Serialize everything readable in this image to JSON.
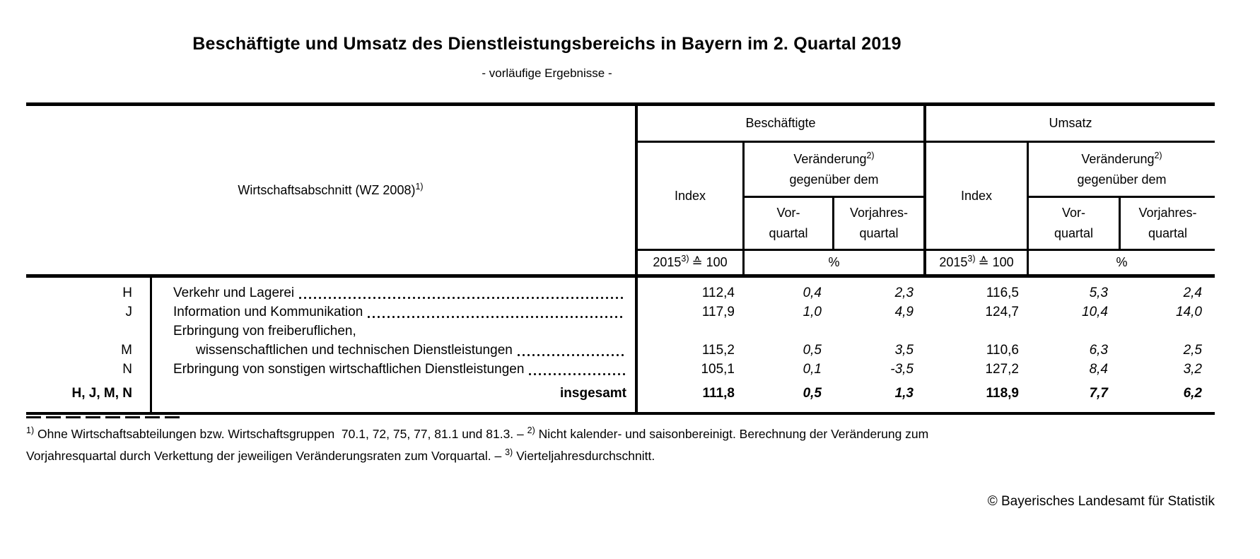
{
  "page": {
    "title": "Beschäftigte und Umsatz des Dienstleistungsbereichs in Bayern im 2. Quartal 2019",
    "subtitle": "- vorläufige Ergebnisse -",
    "copyright": "© Bayerisches Landesamt für Statistik"
  },
  "table": {
    "stub_header": {
      "text": "Wirtschaftsabschnitt (WZ 2008)",
      "sup": "1)"
    },
    "groups": {
      "beschaeftigte": "Beschäftigte",
      "umsatz": "Umsatz"
    },
    "subheads": {
      "index": "Index",
      "change_line1": "Veränderung",
      "change_sup": "2)",
      "change_line2": "gegenüber dem",
      "vq_line1": "Vor-",
      "vq_line2": "quartal",
      "vjq_line1": "Vorjahres-",
      "vjq_line2": "quartal"
    },
    "units": {
      "index_base": "2015",
      "index_sup": "3)",
      "index_rest": "≙ 100",
      "percent": "%"
    },
    "rows": [
      {
        "code": "H",
        "lines": [
          "Verkehr und Lagerei"
        ],
        "leader": true,
        "values": [
          "112,4",
          "0,4",
          "2,3",
          "116,5",
          "5,3",
          "2,4"
        ]
      },
      {
        "code": "J",
        "lines": [
          "Information und Kommunikation"
        ],
        "leader": true,
        "values": [
          "117,9",
          "1,0",
          "4,9",
          "124,7",
          "10,4",
          "14,0"
        ]
      },
      {
        "code": "M",
        "lines": [
          "Erbringung von freiberuflichen,",
          "wissenschaftlichen und technischen Dienstleistungen"
        ],
        "leader": true,
        "values": [
          "115,2",
          "0,5",
          "3,5",
          "110,6",
          "6,3",
          "2,5"
        ]
      },
      {
        "code": "N",
        "lines": [
          "Erbringung von sonstigen wirtschaftlichen Dienstleistungen"
        ],
        "leader": true,
        "values": [
          "105,1",
          "0,1",
          "-3,5",
          "127,2",
          "8,4",
          "3,2"
        ]
      }
    ],
    "total": {
      "code": "H, J, M, N",
      "label": "insgesamt",
      "values": [
        "111,8",
        "0,5",
        "1,3",
        "118,9",
        "7,7",
        "6,2"
      ]
    }
  },
  "footnotes": {
    "lines": [
      [
        {
          "sup": "1)"
        },
        {
          "text": " Ohne Wirtschaftsabteilungen bzw. Wirtschaftsgruppen  70.1, 72, 75, 77, 81.1 und 81.3. – "
        },
        {
          "sup": "2)"
        },
        {
          "text": " Nicht kalender- und saisonbereinigt. Berechnung der Veränderung zum"
        }
      ],
      [
        {
          "text": "Vorjahresquartal durch Verkettung der jeweiligen Veränderungsraten zum Vorquartal. – "
        },
        {
          "sup": "3)"
        },
        {
          "text": " Vierteljahresdurchschnitt."
        }
      ]
    ]
  }
}
